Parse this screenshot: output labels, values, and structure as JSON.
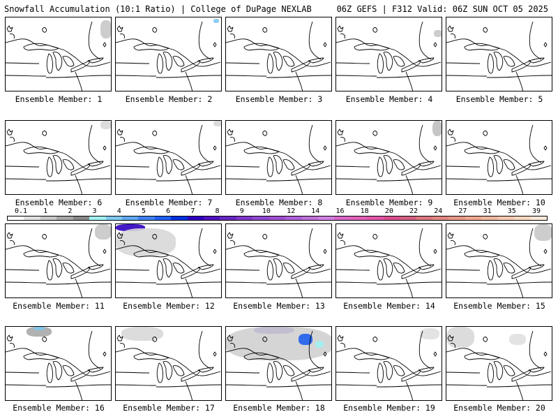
{
  "header": {
    "left": "Snowfall Accumulation (10:1 Ratio) | College of DuPage NEXLAB",
    "right": "06Z GEFS | F312 Valid: 06Z SUN OCT 05 2025"
  },
  "legend": {
    "ticks": [
      "0.1",
      "1",
      "2",
      "3",
      "4",
      "5",
      "6",
      "7",
      "8",
      "9",
      "10",
      "12",
      "14",
      "16",
      "18",
      "20",
      "22",
      "24",
      "27",
      "31",
      "35",
      "39"
    ],
    "colors": [
      "#ffffff",
      "#e0e0e0",
      "#c8c8c8",
      "#a8a8a8",
      "#888888",
      "#a0f0f0",
      "#80c8f0",
      "#60a8f0",
      "#4080f0",
      "#2060f0",
      "#0030e0",
      "#3000c0",
      "#5010c0",
      "#6828c0",
      "#8038c8",
      "#9048d0",
      "#a050d0",
      "#b060d8",
      "#c070d8",
      "#d080e0",
      "#d868c8",
      "#e060b8",
      "#e058a8",
      "#d85090",
      "#d06080",
      "#d87880",
      "#e08880",
      "#e89888",
      "#f0a890",
      "#f0b8a0",
      "#f8c8b0",
      "#f8d8c0",
      "#f8e8d8"
    ]
  },
  "members": [
    {
      "label": "Ensemble Member: 1"
    },
    {
      "label": "Ensemble Member: 2"
    },
    {
      "label": "Ensemble Member: 3"
    },
    {
      "label": "Ensemble Member: 4"
    },
    {
      "label": "Ensemble Member: 5"
    },
    {
      "label": "Ensemble Member: 6"
    },
    {
      "label": "Ensemble Member: 7"
    },
    {
      "label": "Ensemble Member: 8"
    },
    {
      "label": "Ensemble Member: 9"
    },
    {
      "label": "Ensemble Member: 10"
    },
    {
      "label": "Ensemble Member: 11"
    },
    {
      "label": "Ensemble Member: 12"
    },
    {
      "label": "Ensemble Member: 13"
    },
    {
      "label": "Ensemble Member: 14"
    },
    {
      "label": "Ensemble Member: 15"
    },
    {
      "label": "Ensemble Member: 16"
    },
    {
      "label": "Ensemble Member: 17"
    },
    {
      "label": "Ensemble Member: 18"
    },
    {
      "label": "Ensemble Member: 19"
    },
    {
      "label": "Ensemble Member: 20"
    }
  ]
}
